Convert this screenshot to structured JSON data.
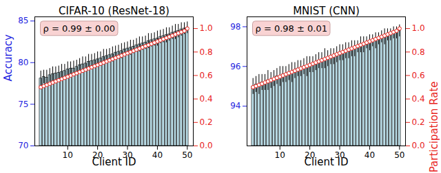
{
  "chart_data": [
    {
      "type": "bar",
      "title": "CIFAR-10 (ResNet-18)",
      "xlabel": "Client ID",
      "ylabel": "Accuracy",
      "annotations": [
        "ρ = 0.99 ± 0.00"
      ],
      "x": [
        1,
        2,
        3,
        4,
        5,
        6,
        7,
        8,
        9,
        10,
        11,
        12,
        13,
        14,
        15,
        16,
        17,
        18,
        19,
        20,
        21,
        22,
        23,
        24,
        25,
        26,
        27,
        28,
        29,
        30,
        31,
        32,
        33,
        34,
        35,
        36,
        37,
        38,
        39,
        40,
        41,
        42,
        43,
        44,
        45,
        46,
        47,
        48,
        49,
        50
      ],
      "series": [
        {
          "type": "bar",
          "color": "#b9dce6",
          "values": [
            78.1,
            78.3,
            78.2,
            78.5,
            78.6,
            78.7,
            78.8,
            78.9,
            79.0,
            79.2,
            79.3,
            79.3,
            79.5,
            79.7,
            79.8,
            79.9,
            80.1,
            80.2,
            80.3,
            80.4,
            80.5,
            80.7,
            80.8,
            80.9,
            81.0,
            81.2,
            81.3,
            81.4,
            81.6,
            81.7,
            81.8,
            81.9,
            82.1,
            82.2,
            82.3,
            82.4,
            82.6,
            82.7,
            82.8,
            82.9,
            83.1,
            83.2,
            83.3,
            83.4,
            83.6,
            83.7,
            83.8,
            84.0,
            84.1,
            84.2
          ],
          "error": [
            0.9,
            0.8,
            0.9,
            0.8,
            0.9,
            0.8,
            0.8,
            0.9,
            0.8,
            0.9,
            0.8,
            0.9,
            0.8,
            0.8,
            0.9,
            0.8,
            0.9,
            0.8,
            0.8,
            0.9,
            0.8,
            0.9,
            0.8,
            0.8,
            0.9,
            0.8,
            0.8,
            0.9,
            0.8,
            0.8,
            0.9,
            0.8,
            0.8,
            0.9,
            0.8,
            0.8,
            0.9,
            0.8,
            0.8,
            0.9,
            0.8,
            0.8,
            0.9,
            0.8,
            0.8,
            0.9,
            0.8,
            0.8,
            0.7,
            0.7
          ]
        },
        {
          "type": "line",
          "axis": "y2",
          "color": "#e8231c",
          "marker": "circle",
          "values": [
            0.5,
            0.51,
            0.52,
            0.53,
            0.54,
            0.55,
            0.56,
            0.57,
            0.58,
            0.59,
            0.6,
            0.61,
            0.62,
            0.63,
            0.64,
            0.65,
            0.66,
            0.67,
            0.68,
            0.69,
            0.7,
            0.71,
            0.72,
            0.73,
            0.74,
            0.75,
            0.76,
            0.77,
            0.78,
            0.79,
            0.8,
            0.81,
            0.82,
            0.83,
            0.84,
            0.85,
            0.86,
            0.87,
            0.88,
            0.89,
            0.9,
            0.91,
            0.92,
            0.93,
            0.94,
            0.95,
            0.96,
            0.97,
            0.98,
            1.0
          ]
        }
      ],
      "xlim": [
        -1,
        52
      ],
      "xticks": [
        10,
        20,
        30,
        40,
        50
      ],
      "ylim": [
        70,
        85.5
      ],
      "yticks": [
        70,
        75,
        80,
        85
      ],
      "y2lim": [
        0,
        1.1
      ],
      "y2ticks": [
        {
          "value": 0,
          "label": "0.0"
        },
        {
          "value": 0.2,
          "label": "0.2"
        },
        {
          "value": 0.4,
          "label": "0.4"
        },
        {
          "value": 0.6,
          "label": "0.6"
        },
        {
          "value": 0.8,
          "label": "0.8"
        },
        {
          "value": 1,
          "label": "1.0"
        }
      ]
    },
    {
      "type": "bar",
      "title": "MNIST (CNN)",
      "xlabel": "Client ID",
      "y2label": "Participation Rate",
      "annotations": [
        "ρ = 0.98 ± 0.01"
      ],
      "x": [
        1,
        2,
        3,
        4,
        5,
        6,
        7,
        8,
        9,
        10,
        11,
        12,
        13,
        14,
        15,
        16,
        17,
        18,
        19,
        20,
        21,
        22,
        23,
        24,
        25,
        26,
        27,
        28,
        29,
        30,
        31,
        32,
        33,
        34,
        35,
        36,
        37,
        38,
        39,
        40,
        41,
        42,
        43,
        44,
        45,
        46,
        47,
        48,
        49,
        50
      ],
      "series": [
        {
          "type": "bar",
          "color": "#b9dce6",
          "values": [
            95.0,
            95.1,
            95.1,
            95.2,
            95.2,
            95.3,
            95.3,
            95.4,
            95.5,
            95.5,
            95.6,
            95.6,
            95.7,
            95.7,
            95.8,
            95.9,
            95.9,
            96.0,
            96.0,
            96.1,
            96.1,
            96.2,
            96.3,
            96.3,
            96.4,
            96.4,
            96.5,
            96.5,
            96.6,
            96.7,
            96.7,
            96.8,
            96.8,
            96.9,
            96.9,
            97.0,
            97.1,
            97.1,
            97.2,
            97.2,
            97.3,
            97.3,
            97.4,
            97.5,
            97.5,
            97.6,
            97.6,
            97.7,
            97.7,
            97.8
          ],
          "error": [
            0.4,
            0.4,
            0.5,
            0.4,
            0.4,
            0.5,
            0.4,
            0.4,
            0.4,
            0.5,
            0.4,
            0.4,
            0.4,
            0.5,
            0.4,
            0.4,
            0.4,
            0.4,
            0.5,
            0.4,
            0.4,
            0.4,
            0.4,
            0.4,
            0.5,
            0.4,
            0.4,
            0.4,
            0.4,
            0.4,
            0.4,
            0.4,
            0.4,
            0.4,
            0.4,
            0.3,
            0.4,
            0.4,
            0.3,
            0.4,
            0.3,
            0.4,
            0.3,
            0.3,
            0.4,
            0.3,
            0.3,
            0.3,
            0.3,
            0.3
          ]
        },
        {
          "type": "line",
          "axis": "y2",
          "color": "#e8231c",
          "marker": "circle",
          "values": [
            0.5,
            0.51,
            0.52,
            0.53,
            0.54,
            0.55,
            0.56,
            0.57,
            0.58,
            0.59,
            0.6,
            0.61,
            0.62,
            0.63,
            0.64,
            0.65,
            0.66,
            0.67,
            0.68,
            0.69,
            0.7,
            0.71,
            0.72,
            0.73,
            0.74,
            0.75,
            0.76,
            0.77,
            0.78,
            0.79,
            0.8,
            0.81,
            0.82,
            0.83,
            0.84,
            0.85,
            0.86,
            0.87,
            0.88,
            0.89,
            0.9,
            0.91,
            0.92,
            0.93,
            0.94,
            0.95,
            0.96,
            0.97,
            0.98,
            1.0
          ]
        }
      ],
      "xlim": [
        -1,
        52
      ],
      "xticks": [
        10,
        20,
        30,
        40,
        50
      ],
      "ylim": [
        92,
        98.5
      ],
      "yticks": [
        94,
        96,
        98
      ],
      "y2lim": [
        0,
        1.1
      ],
      "y2ticks": [
        {
          "value": 0,
          "label": "0.0"
        },
        {
          "value": 0.2,
          "label": "0.2"
        },
        {
          "value": 0.4,
          "label": "0.4"
        },
        {
          "value": 0.6,
          "label": "0.6"
        },
        {
          "value": 0.8,
          "label": "0.8"
        },
        {
          "value": 1,
          "label": "1.0"
        }
      ]
    }
  ]
}
